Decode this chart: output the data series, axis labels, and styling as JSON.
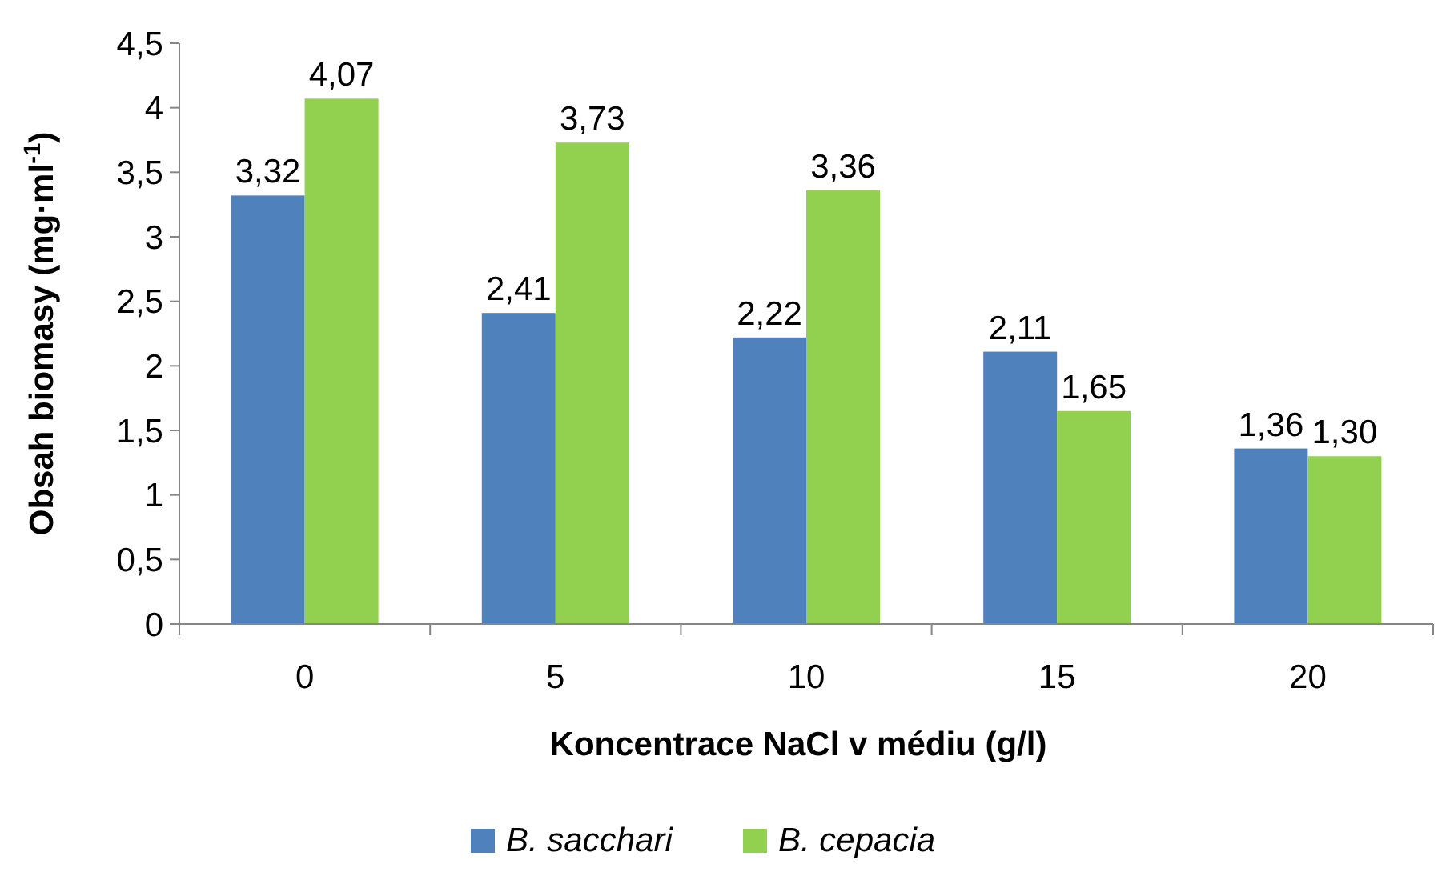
{
  "chart_data": {
    "type": "bar",
    "xlabel": "Koncentrace NaCl  v médiu (g/l)",
    "ylabel": "Obsah biomasy (mg·ml$^{-1}$)",
    "categories": [
      "0",
      "5",
      "10",
      "15",
      "20"
    ],
    "series": [
      {
        "name": "B. sacchari",
        "color": "#4f81bd",
        "values": [
          3.32,
          2.41,
          2.22,
          2.11,
          1.36
        ],
        "value_labels": [
          "3,32",
          "2,41",
          "2,22",
          "2,11",
          "1,36"
        ]
      },
      {
        "name": "B. cepacia",
        "color": "#92d050",
        "values": [
          4.07,
          3.73,
          3.36,
          1.65,
          1.3
        ],
        "value_labels": [
          "4,07",
          "3,73",
          "3,36",
          "1,65",
          "1,30"
        ]
      }
    ],
    "ylim": [
      0,
      4.5
    ],
    "yticks": [
      0,
      {
        "value": 0.5,
        "label": "0,5"
      },
      1,
      {
        "value": 1.5,
        "label": "1,5"
      },
      2,
      {
        "value": 2.5,
        "label": "2,5"
      },
      3,
      {
        "value": 3.5,
        "label": "3,5"
      },
      4,
      {
        "value": 4.5,
        "label": "4,5"
      }
    ],
    "grid": false,
    "legend": "bottom"
  }
}
